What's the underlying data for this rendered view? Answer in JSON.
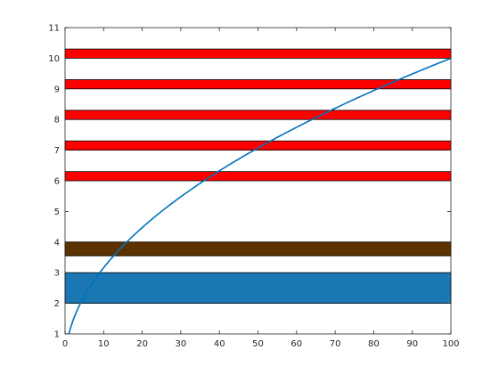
{
  "chart_data": {
    "type": "line",
    "title": "",
    "xlabel": "",
    "ylabel": "",
    "xlim": [
      0,
      100
    ],
    "ylim": [
      1,
      11
    ],
    "grid": false,
    "legend": "none",
    "xticks": [
      "0",
      "10",
      "20",
      "30",
      "40",
      "50",
      "60",
      "70",
      "80",
      "90",
      "100"
    ],
    "yticks": [
      "1",
      "2",
      "3",
      "4",
      "5",
      "6",
      "7",
      "8",
      "9",
      "10",
      "11"
    ],
    "bands": [
      {
        "y_from": 2.0,
        "y_to": 3.0,
        "color": "#1a77b4"
      },
      {
        "y_from": 3.55,
        "y_to": 4.0,
        "color": "#5c3300"
      },
      {
        "y_from": 6.0,
        "y_to": 6.3,
        "color": "#ff0000"
      },
      {
        "y_from": 7.0,
        "y_to": 7.3,
        "color": "#ff0000"
      },
      {
        "y_from": 8.0,
        "y_to": 8.3,
        "color": "#ff0000"
      },
      {
        "y_from": 9.0,
        "y_to": 9.3,
        "color": "#ff0000"
      },
      {
        "y_from": 10.0,
        "y_to": 10.3,
        "color": "#ff0000"
      }
    ],
    "series": [
      {
        "function": "y = sqrt(x)",
        "color": "#0072bd",
        "x": [
          1,
          2,
          4,
          6,
          9,
          12,
          16,
          20,
          25,
          30,
          36,
          40,
          49,
          56,
          64,
          72,
          81,
          90,
          100
        ],
        "y": [
          1,
          1.414,
          2,
          2.449,
          3,
          3.464,
          4,
          4.472,
          5,
          5.477,
          6,
          6.325,
          7,
          7.483,
          8,
          8.485,
          9,
          9.487,
          10
        ]
      }
    ]
  }
}
